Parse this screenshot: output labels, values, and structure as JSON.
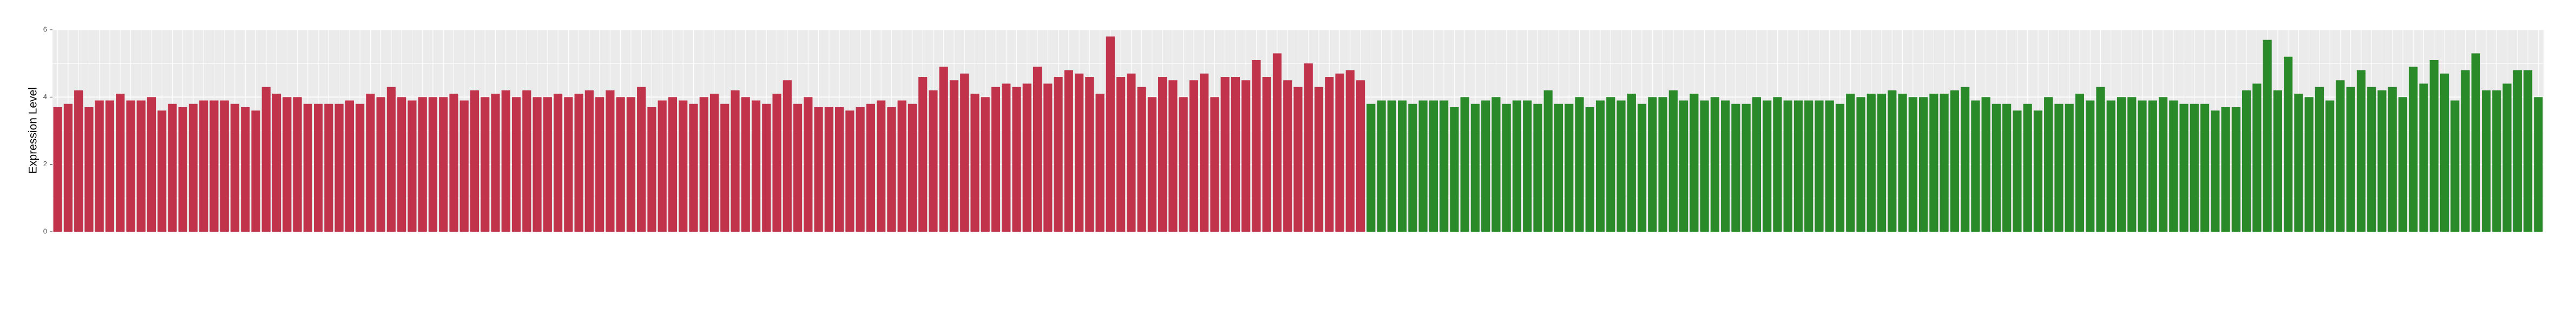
{
  "chart_data": {
    "type": "bar",
    "y_label": "Expression Level",
    "ylim": [
      0,
      6
    ],
    "yticks": [
      0,
      2,
      4,
      6
    ],
    "grid": true,
    "series": [
      {
        "color": "#c1334a",
        "values": [
          3.7,
          3.8,
          4.2,
          3.7,
          3.9,
          3.9,
          4.1,
          3.9,
          3.9,
          4.0,
          3.6,
          3.8,
          3.7,
          3.8,
          3.9,
          3.9,
          3.9,
          3.8,
          3.7,
          3.6,
          4.3,
          4.1,
          4.0,
          4.0,
          3.8,
          3.8,
          3.8,
          3.8,
          3.9,
          3.8,
          4.1,
          4.0,
          4.3,
          4.0,
          3.9,
          4.0,
          4.0,
          4.0,
          4.1,
          3.9,
          4.2,
          4.0,
          4.1,
          4.2,
          4.0,
          4.2,
          4.0,
          4.0,
          4.1,
          4.0,
          4.1,
          4.2,
          4.0,
          4.2,
          4.0,
          4.0,
          4.3,
          3.7,
          3.9,
          4.0,
          3.9,
          3.8,
          4.0,
          4.1,
          3.8,
          4.2,
          4.0,
          3.9,
          3.8,
          4.1,
          4.5,
          3.8,
          4.0,
          3.7,
          3.7,
          3.7,
          3.6,
          3.7,
          3.8,
          3.9,
          3.7,
          3.9,
          3.8,
          4.6,
          4.2,
          4.9,
          4.5,
          4.7,
          4.1,
          4.0,
          4.3,
          4.4,
          4.3,
          4.4,
          4.9,
          4.4,
          4.6,
          4.8,
          4.7,
          4.6,
          4.1,
          5.8,
          4.6,
          4.7,
          4.3,
          4.0,
          4.6,
          4.5,
          4.0,
          4.5,
          4.7,
          4.0,
          4.6,
          4.6,
          4.5,
          5.1,
          4.6,
          5.3,
          4.5,
          4.3,
          5.0,
          4.3,
          4.6,
          4.7,
          4.8,
          4.5
        ]
      },
      {
        "color": "#2a8a2a",
        "values": [
          3.8,
          3.9,
          3.9,
          3.9,
          3.8,
          3.9,
          3.9,
          3.9,
          3.7,
          4.0,
          3.8,
          3.9,
          4.0,
          3.8,
          3.9,
          3.9,
          3.8,
          4.2,
          3.8,
          3.8,
          4.0,
          3.7,
          3.9,
          4.0,
          3.9,
          4.1,
          3.8,
          4.0,
          4.0,
          4.2,
          3.9,
          4.1,
          3.9,
          4.0,
          3.9,
          3.8,
          3.8,
          4.0,
          3.9,
          4.0,
          3.9,
          3.9,
          3.9,
          3.9,
          3.9,
          3.8,
          4.1,
          4.0,
          4.1,
          4.1,
          4.2,
          4.1,
          4.0,
          4.0,
          4.1,
          4.1,
          4.2,
          4.3,
          3.9,
          4.0,
          3.8,
          3.8,
          3.6,
          3.8,
          3.6,
          4.0,
          3.8,
          3.8,
          4.1,
          3.9,
          4.3,
          3.9,
          4.0,
          4.0,
          3.9,
          3.9,
          4.0,
          3.9,
          3.8,
          3.8,
          3.8,
          3.6,
          3.7,
          3.7,
          4.2,
          4.4,
          5.7,
          4.2,
          5.2,
          4.1,
          4.0,
          4.3,
          3.9,
          4.5,
          4.3,
          4.8,
          4.3,
          4.2,
          4.3,
          4.0,
          4.9,
          4.4,
          5.1,
          4.7,
          3.9,
          4.8,
          5.3,
          4.2,
          4.2,
          4.4,
          4.8,
          4.8,
          4.0
        ]
      }
    ]
  }
}
